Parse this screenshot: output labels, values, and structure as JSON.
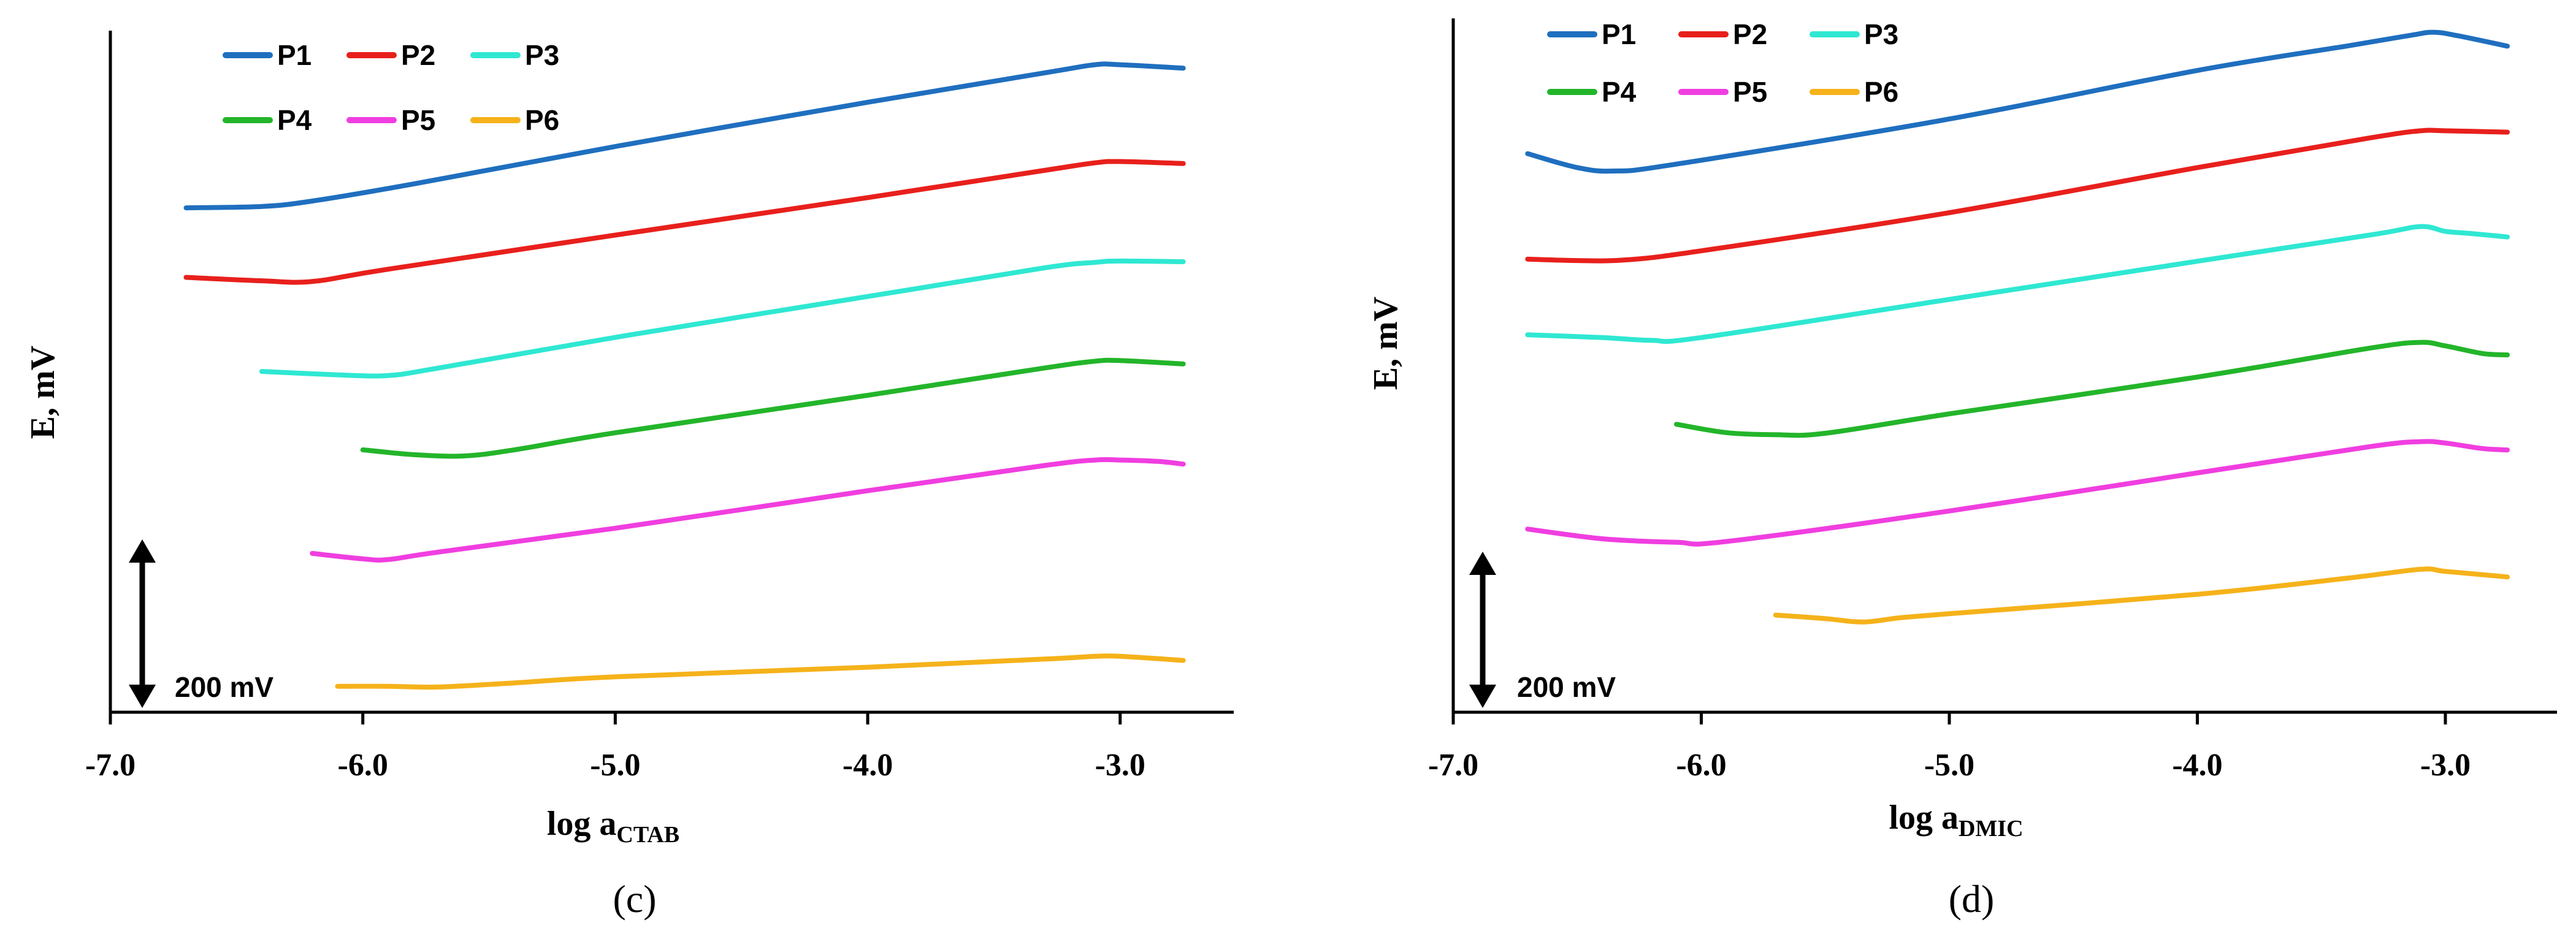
{
  "chart_data": [
    {
      "type": "line",
      "panel_label": "(c)",
      "ylabel": "E, mV",
      "xlabel_main": "log a",
      "xlabel_sub": "CTAB",
      "xlim": [
        -7.0,
        -2.55
      ],
      "ylim": [
        0,
        100
      ],
      "x_ticks": [
        -7.0,
        -6.0,
        -5.0,
        -4.0,
        -3.0
      ],
      "x_tick_labels": [
        "-7.0",
        "-6.0",
        "-5.0",
        "-4.0",
        "-3.0"
      ],
      "scale_bar_label": "200 mV",
      "scale_bar_value": 200,
      "legend": [
        "P1",
        "P2",
        "P3",
        "P4",
        "P5",
        "P6"
      ],
      "series": [
        {
          "name": "P1",
          "color": "#1f6fbf",
          "x": [
            -6.7,
            -6.4,
            -6.2,
            -5.8,
            -5.0,
            -4.0,
            -3.3,
            -3.1,
            -3.0,
            -2.75
          ],
          "y": [
            74.0,
            74.2,
            75.0,
            77.5,
            83.0,
            89.5,
            93.8,
            95.0,
            95.0,
            94.5
          ]
        },
        {
          "name": "P2",
          "color": "#e8201c",
          "x": [
            -6.7,
            -6.4,
            -6.2,
            -5.9,
            -5.0,
            -4.0,
            -3.3,
            -3.1,
            -3.0,
            -2.75
          ],
          "y": [
            63.8,
            63.3,
            63.2,
            65.0,
            70.0,
            75.5,
            79.5,
            80.6,
            80.8,
            80.5
          ]
        },
        {
          "name": "P3",
          "color": "#2fe8d2",
          "x": [
            -6.4,
            -6.1,
            -5.9,
            -5.7,
            -5.0,
            -4.0,
            -3.3,
            -3.1,
            -3.0,
            -2.75
          ],
          "y": [
            50.0,
            49.5,
            49.4,
            50.5,
            55.0,
            61.0,
            65.2,
            66.0,
            66.2,
            66.1
          ]
        },
        {
          "name": "P4",
          "color": "#23b52a",
          "x": [
            -6.0,
            -5.8,
            -5.6,
            -5.4,
            -5.0,
            -4.0,
            -3.3,
            -3.1,
            -3.0,
            -2.75
          ],
          "y": [
            38.5,
            37.8,
            37.6,
            38.5,
            41.0,
            46.5,
            50.5,
            51.5,
            51.6,
            51.1
          ]
        },
        {
          "name": "P5",
          "color": "#f03ee0",
          "x": [
            -6.2,
            -6.0,
            -5.9,
            -5.7,
            -5.0,
            -4.0,
            -3.3,
            -3.1,
            -3.0,
            -2.85,
            -2.75
          ],
          "y": [
            23.3,
            22.5,
            22.4,
            23.5,
            27.0,
            32.5,
            36.2,
            37.0,
            37.0,
            36.8,
            36.4
          ]
        },
        {
          "name": "P6",
          "color": "#f5b21a",
          "x": [
            -6.1,
            -5.9,
            -5.7,
            -5.4,
            -5.0,
            -4.0,
            -3.3,
            -3.1,
            -3.0,
            -2.75
          ],
          "y": [
            3.8,
            3.8,
            3.7,
            4.3,
            5.2,
            6.6,
            7.8,
            8.2,
            8.2,
            7.6
          ]
        }
      ]
    },
    {
      "type": "line",
      "panel_label": "(d)",
      "ylabel": "E, mV",
      "xlabel_main": "log a",
      "xlabel_sub": "DMIC",
      "xlim": [
        -7.0,
        -2.55
      ],
      "ylim": [
        0,
        100
      ],
      "x_ticks": [
        -7.0,
        -6.0,
        -5.0,
        -4.0,
        -3.0
      ],
      "x_tick_labels": [
        "-7.0",
        "-6.0",
        "-5.0",
        "-4.0",
        "-3.0"
      ],
      "scale_bar_label": "200 mV",
      "scale_bar_value": 200,
      "legend": [
        "P1",
        "P2",
        "P3",
        "P4",
        "P5",
        "P6"
      ],
      "series": [
        {
          "name": "P1",
          "color": "#1f6fbf",
          "x": [
            -6.7,
            -6.5,
            -6.35,
            -6.1,
            -5.0,
            -4.0,
            -3.4,
            -3.15,
            -3.05,
            -2.95,
            -2.75
          ],
          "y": [
            80.5,
            78.5,
            78.0,
            79.0,
            85.5,
            92.5,
            96.0,
            97.5,
            98.0,
            97.5,
            96.0
          ]
        },
        {
          "name": "P2",
          "color": "#e8201c",
          "x": [
            -6.7,
            -6.5,
            -6.3,
            -6.0,
            -5.0,
            -4.0,
            -3.3,
            -3.1,
            -3.0,
            -2.75
          ],
          "y": [
            65.3,
            65.1,
            65.2,
            66.5,
            72.0,
            78.5,
            82.8,
            83.8,
            83.8,
            83.6
          ]
        },
        {
          "name": "P3",
          "color": "#2fe8d2",
          "x": [
            -6.7,
            -6.4,
            -6.2,
            -6.0,
            -5.0,
            -4.0,
            -3.3,
            -3.1,
            -3.0,
            -2.9,
            -2.75
          ],
          "y": [
            54.4,
            54.0,
            53.6,
            54.0,
            59.5,
            65.0,
            68.8,
            70.0,
            69.3,
            69.0,
            68.5
          ]
        },
        {
          "name": "P4",
          "color": "#23b52a",
          "x": [
            -6.1,
            -5.9,
            -5.7,
            -5.5,
            -5.0,
            -4.0,
            -3.3,
            -3.1,
            -3.0,
            -2.85,
            -2.75
          ],
          "y": [
            41.5,
            40.3,
            40.0,
            40.2,
            43.0,
            48.3,
            52.5,
            53.3,
            52.8,
            51.7,
            51.5
          ]
        },
        {
          "name": "P5",
          "color": "#f03ee0",
          "x": [
            -6.7,
            -6.4,
            -6.1,
            -5.9,
            -5.0,
            -4.0,
            -3.3,
            -3.1,
            -3.0,
            -2.85,
            -2.75
          ],
          "y": [
            26.4,
            25.0,
            24.5,
            24.6,
            29.0,
            34.5,
            38.3,
            39.0,
            38.8,
            38.0,
            37.8
          ]
        },
        {
          "name": "P6",
          "color": "#f5b21a",
          "x": [
            -5.7,
            -5.5,
            -5.35,
            -5.2,
            -5.0,
            -4.0,
            -3.4,
            -3.1,
            -3.0,
            -2.75
          ],
          "y": [
            14.0,
            13.5,
            13.0,
            13.6,
            14.2,
            17.0,
            19.3,
            20.6,
            20.3,
            19.5
          ]
        }
      ]
    }
  ]
}
